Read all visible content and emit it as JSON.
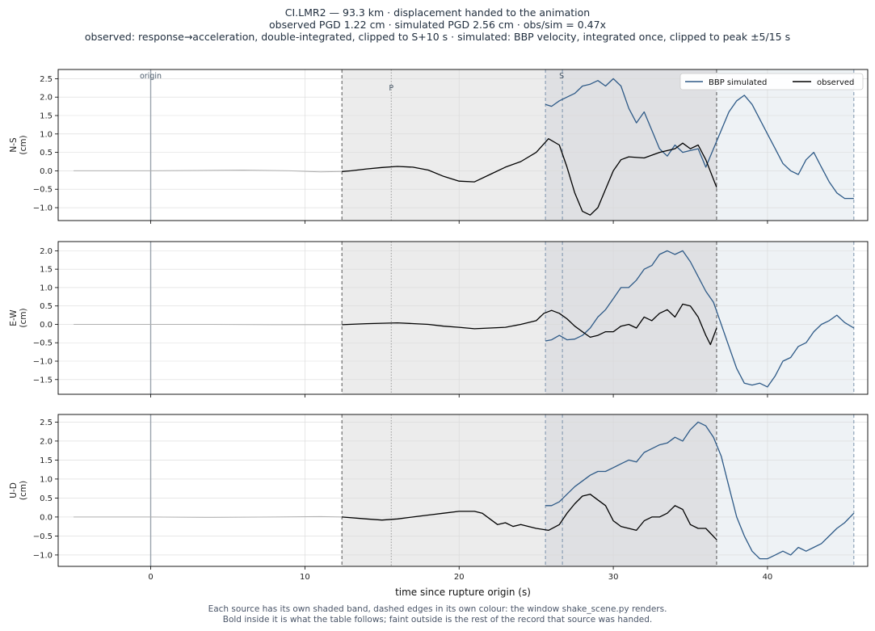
{
  "header": {
    "line1": "CI.LMR2  —  93.3 km   ·   displacement handed to the animation",
    "line2": "observed PGD 1.22 cm   ·   simulated PGD 2.56 cm   ·   obs/sim = 0.47x",
    "line3": "observed: response→acceleration, double-integrated, clipped to S+10 s   ·   simulated: BBP velocity, integrated once, clipped to peak ±5/15 s"
  },
  "footnote": {
    "line1": "Each source has its own shaded band, dashed edges in its own colour: the window shake_scene.py renders.",
    "line2": "Bold inside it is what the table follows;   faint outside is the rest of the record that source was handed."
  },
  "colors": {
    "observed": "#000000",
    "simulated": "#2e5a87",
    "faint": "#b0b0b0",
    "obs_band": "#ececec",
    "overlap_band": "#dfe0e3",
    "sim_band": "#eef2f5",
    "obs_edge": "#555555",
    "sim_edge": "#7a91ab",
    "origin_line": "#9aa3ad",
    "pick_line": "#999999"
  },
  "chart_data": {
    "type": "line",
    "xlabel": "time since rupture origin (s)",
    "xlim": [
      -6,
      46.5
    ],
    "xticks": [
      0,
      10,
      20,
      30,
      40
    ],
    "legend": {
      "position": "top-right",
      "entries": [
        "BBP simulated",
        "observed"
      ]
    },
    "markers": {
      "origin": 0,
      "P": 15.6,
      "S": 26.7
    },
    "marker_labels": {
      "origin": "origin",
      "P": "P",
      "S": "S"
    },
    "windows": {
      "observed": [
        12.4,
        36.7
      ],
      "simulated": [
        25.6,
        45.6
      ]
    },
    "panels": [
      {
        "id": "ns",
        "ylabel": "N-S",
        "unit": "(cm)",
        "ylim": [
          -1.35,
          2.75
        ],
        "yticks": [
          -1.0,
          -0.5,
          0.0,
          0.5,
          1.0,
          1.5,
          2.0,
          2.5
        ],
        "faint_pre": [
          [
            -5,
            0
          ],
          [
            0,
            0
          ],
          [
            3,
            0.01
          ],
          [
            6,
            0.02
          ],
          [
            9,
            0.0
          ],
          [
            11,
            -0.03
          ],
          [
            12.4,
            -0.02
          ]
        ],
        "observed": [
          [
            12.4,
            -0.02
          ],
          [
            13,
            0.0
          ],
          [
            14,
            0.05
          ],
          [
            15,
            0.09
          ],
          [
            16,
            0.12
          ],
          [
            17,
            0.1
          ],
          [
            18,
            0.02
          ],
          [
            19,
            -0.15
          ],
          [
            20,
            -0.28
          ],
          [
            21,
            -0.3
          ],
          [
            22,
            -0.1
          ],
          [
            23,
            0.1
          ],
          [
            24,
            0.25
          ],
          [
            25,
            0.5
          ],
          [
            25.8,
            0.87
          ],
          [
            26.5,
            0.7
          ],
          [
            27,
            0.1
          ],
          [
            27.5,
            -0.6
          ],
          [
            28,
            -1.1
          ],
          [
            28.5,
            -1.2
          ],
          [
            29,
            -1.0
          ],
          [
            29.5,
            -0.5
          ],
          [
            30,
            0.0
          ],
          [
            30.5,
            0.3
          ],
          [
            31,
            0.38
          ],
          [
            32,
            0.35
          ],
          [
            33,
            0.5
          ],
          [
            34,
            0.6
          ],
          [
            34.5,
            0.75
          ],
          [
            35,
            0.6
          ],
          [
            35.5,
            0.7
          ],
          [
            36,
            0.3
          ],
          [
            36.7,
            -0.45
          ]
        ],
        "simulated": [
          [
            25.6,
            1.8
          ],
          [
            26,
            1.75
          ],
          [
            26.5,
            1.9
          ],
          [
            27,
            2.0
          ],
          [
            27.5,
            2.1
          ],
          [
            28,
            2.3
          ],
          [
            28.5,
            2.35
          ],
          [
            29,
            2.45
          ],
          [
            29.5,
            2.3
          ],
          [
            30,
            2.5
          ],
          [
            30.5,
            2.3
          ],
          [
            31,
            1.7
          ],
          [
            31.5,
            1.3
          ],
          [
            32,
            1.6
          ],
          [
            32.5,
            1.1
          ],
          [
            33,
            0.6
          ],
          [
            33.5,
            0.4
          ],
          [
            34,
            0.7
          ],
          [
            34.5,
            0.5
          ],
          [
            35,
            0.55
          ],
          [
            35.5,
            0.6
          ],
          [
            36,
            0.1
          ],
          [
            36.5,
            0.6
          ],
          [
            37,
            1.1
          ],
          [
            37.5,
            1.6
          ],
          [
            38,
            1.9
          ],
          [
            38.5,
            2.05
          ],
          [
            39,
            1.8
          ],
          [
            39.5,
            1.4
          ],
          [
            40,
            1.0
          ],
          [
            40.5,
            0.6
          ],
          [
            41,
            0.2
          ],
          [
            41.5,
            0.0
          ],
          [
            42,
            -0.1
          ],
          [
            42.5,
            0.3
          ],
          [
            43,
            0.5
          ],
          [
            43.5,
            0.1
          ],
          [
            44,
            -0.3
          ],
          [
            44.5,
            -0.6
          ],
          [
            45,
            -0.75
          ],
          [
            45.6,
            -0.75
          ]
        ]
      },
      {
        "id": "ew",
        "ylabel": "E-W",
        "unit": "(cm)",
        "ylim": [
          -1.9,
          2.25
        ],
        "yticks": [
          -1.5,
          -1.0,
          -0.5,
          0.0,
          0.5,
          1.0,
          1.5,
          2.0
        ],
        "faint_pre": [
          [
            -5,
            0
          ],
          [
            0,
            0
          ],
          [
            4,
            0.0
          ],
          [
            8,
            -0.01
          ],
          [
            11,
            -0.01
          ],
          [
            12.4,
            -0.01
          ]
        ],
        "observed": [
          [
            12.4,
            -0.01
          ],
          [
            14,
            0.02
          ],
          [
            16,
            0.04
          ],
          [
            18,
            0.0
          ],
          [
            19,
            -0.05
          ],
          [
            20,
            -0.08
          ],
          [
            21,
            -0.12
          ],
          [
            22,
            -0.1
          ],
          [
            23,
            -0.08
          ],
          [
            24,
            0.0
          ],
          [
            25,
            0.1
          ],
          [
            25.5,
            0.3
          ],
          [
            26,
            0.38
          ],
          [
            26.5,
            0.3
          ],
          [
            27,
            0.15
          ],
          [
            27.5,
            -0.05
          ],
          [
            28,
            -0.2
          ],
          [
            28.5,
            -0.35
          ],
          [
            29,
            -0.3
          ],
          [
            29.5,
            -0.2
          ],
          [
            30,
            -0.2
          ],
          [
            30.5,
            -0.05
          ],
          [
            31,
            0.0
          ],
          [
            31.5,
            -0.1
          ],
          [
            32,
            0.2
          ],
          [
            32.5,
            0.1
          ],
          [
            33,
            0.3
          ],
          [
            33.5,
            0.4
          ],
          [
            34,
            0.2
          ],
          [
            34.5,
            0.55
          ],
          [
            35,
            0.5
          ],
          [
            35.5,
            0.2
          ],
          [
            36,
            -0.3
          ],
          [
            36.3,
            -0.55
          ],
          [
            36.7,
            -0.1
          ]
        ],
        "simulated": [
          [
            25.6,
            -0.45
          ],
          [
            26,
            -0.42
          ],
          [
            26.5,
            -0.3
          ],
          [
            27,
            -0.42
          ],
          [
            27.5,
            -0.4
          ],
          [
            28,
            -0.3
          ],
          [
            28.5,
            -0.1
          ],
          [
            29,
            0.2
          ],
          [
            29.5,
            0.4
          ],
          [
            30,
            0.7
          ],
          [
            30.5,
            1.0
          ],
          [
            31,
            1.0
          ],
          [
            31.5,
            1.2
          ],
          [
            32,
            1.5
          ],
          [
            32.5,
            1.6
          ],
          [
            33,
            1.9
          ],
          [
            33.5,
            2.0
          ],
          [
            34,
            1.9
          ],
          [
            34.5,
            2.0
          ],
          [
            35,
            1.7
          ],
          [
            35.5,
            1.3
          ],
          [
            36,
            0.9
          ],
          [
            36.5,
            0.6
          ],
          [
            37,
            0.0
          ],
          [
            37.5,
            -0.6
          ],
          [
            38,
            -1.2
          ],
          [
            38.5,
            -1.6
          ],
          [
            39,
            -1.65
          ],
          [
            39.5,
            -1.6
          ],
          [
            40,
            -1.7
          ],
          [
            40.5,
            -1.4
          ],
          [
            41,
            -1.0
          ],
          [
            41.5,
            -0.9
          ],
          [
            42,
            -0.6
          ],
          [
            42.5,
            -0.5
          ],
          [
            43,
            -0.2
          ],
          [
            43.5,
            0.0
          ],
          [
            44,
            0.1
          ],
          [
            44.5,
            0.25
          ],
          [
            45,
            0.05
          ],
          [
            45.6,
            -0.1
          ]
        ]
      },
      {
        "id": "ud",
        "ylabel": "U-D",
        "unit": "(cm)",
        "ylim": [
          -1.3,
          2.7
        ],
        "yticks": [
          -1.0,
          -0.5,
          0.0,
          0.5,
          1.0,
          1.5,
          2.0,
          2.5
        ],
        "faint_pre": [
          [
            -5,
            0
          ],
          [
            0,
            0
          ],
          [
            4,
            -0.01
          ],
          [
            8,
            0.0
          ],
          [
            11,
            0.01
          ],
          [
            12.4,
            0.0
          ]
        ],
        "observed": [
          [
            12.4,
            0.0
          ],
          [
            14,
            -0.05
          ],
          [
            15,
            -0.08
          ],
          [
            16,
            -0.05
          ],
          [
            17,
            0.0
          ],
          [
            18,
            0.05
          ],
          [
            19,
            0.1
          ],
          [
            20,
            0.15
          ],
          [
            21,
            0.15
          ],
          [
            21.5,
            0.1
          ],
          [
            22,
            -0.05
          ],
          [
            22.5,
            -0.2
          ],
          [
            23,
            -0.15
          ],
          [
            23.5,
            -0.25
          ],
          [
            24,
            -0.2
          ],
          [
            25,
            -0.3
          ],
          [
            25.8,
            -0.35
          ],
          [
            26.5,
            -0.2
          ],
          [
            27,
            0.1
          ],
          [
            27.5,
            0.35
          ],
          [
            28,
            0.55
          ],
          [
            28.5,
            0.6
          ],
          [
            29,
            0.45
          ],
          [
            29.5,
            0.3
          ],
          [
            30,
            -0.1
          ],
          [
            30.5,
            -0.25
          ],
          [
            31,
            -0.3
          ],
          [
            31.5,
            -0.35
          ],
          [
            32,
            -0.1
          ],
          [
            32.5,
            0.0
          ],
          [
            33,
            0.0
          ],
          [
            33.5,
            0.1
          ],
          [
            34,
            0.3
          ],
          [
            34.5,
            0.2
          ],
          [
            35,
            -0.2
          ],
          [
            35.5,
            -0.3
          ],
          [
            36,
            -0.3
          ],
          [
            36.7,
            -0.6
          ]
        ],
        "simulated": [
          [
            25.6,
            0.3
          ],
          [
            26,
            0.3
          ],
          [
            26.5,
            0.4
          ],
          [
            27,
            0.6
          ],
          [
            27.5,
            0.8
          ],
          [
            28,
            0.95
          ],
          [
            28.5,
            1.1
          ],
          [
            29,
            1.2
          ],
          [
            29.5,
            1.2
          ],
          [
            30,
            1.3
          ],
          [
            30.5,
            1.4
          ],
          [
            31,
            1.5
          ],
          [
            31.5,
            1.45
          ],
          [
            32,
            1.7
          ],
          [
            32.5,
            1.8
          ],
          [
            33,
            1.9
          ],
          [
            33.5,
            1.95
          ],
          [
            34,
            2.1
          ],
          [
            34.5,
            2.0
          ],
          [
            35,
            2.3
          ],
          [
            35.5,
            2.5
          ],
          [
            36,
            2.4
          ],
          [
            36.5,
            2.1
          ],
          [
            37,
            1.6
          ],
          [
            37.5,
            0.8
          ],
          [
            38,
            0.0
          ],
          [
            38.5,
            -0.5
          ],
          [
            39,
            -0.9
          ],
          [
            39.5,
            -1.1
          ],
          [
            40,
            -1.1
          ],
          [
            40.5,
            -1.0
          ],
          [
            41,
            -0.9
          ],
          [
            41.5,
            -1.0
          ],
          [
            42,
            -0.8
          ],
          [
            42.5,
            -0.9
          ],
          [
            43,
            -0.8
          ],
          [
            43.5,
            -0.7
          ],
          [
            44,
            -0.5
          ],
          [
            44.5,
            -0.3
          ],
          [
            45,
            -0.15
          ],
          [
            45.6,
            0.1
          ]
        ]
      }
    ]
  }
}
